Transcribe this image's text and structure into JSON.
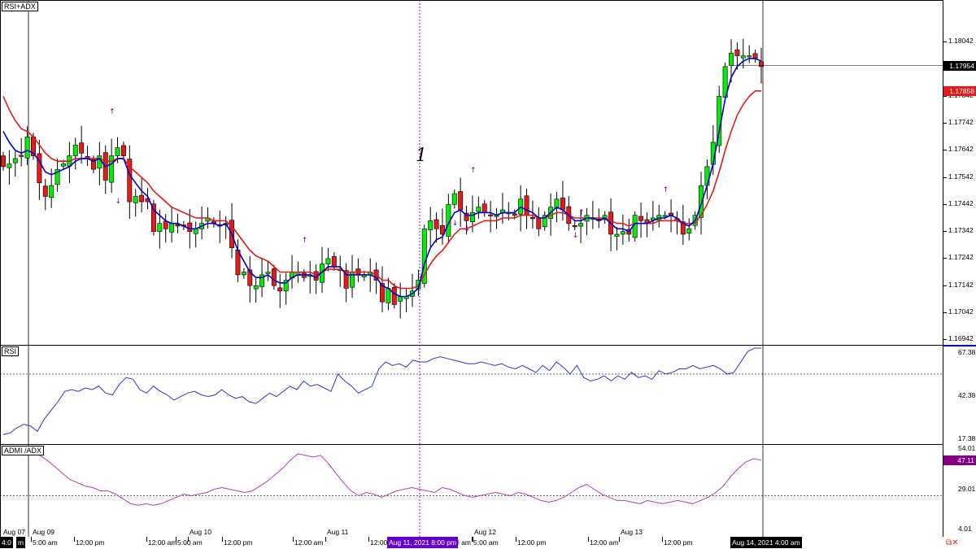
{
  "panes": {
    "main_title": "RSI+ADX",
    "rsi_title": "RSI",
    "adx_title": "ADMI /ADX"
  },
  "price_axis": {
    "ticks": [
      "1.18042",
      "1.17942",
      "1.17842",
      "1.17742",
      "1.17642",
      "1.17542",
      "1.17442",
      "1.17342",
      "1.17242",
      "1.17142",
      "1.17042",
      "1.16942"
    ],
    "current_bid": "1.17954",
    "ma_value": "1.17858",
    "bid_color": "#000000",
    "ma_color": "#e31b1b"
  },
  "rsi_axis": {
    "ticks": [
      "67.38",
      "42.38",
      "17.38"
    ],
    "level": 55
  },
  "adx_axis": {
    "ticks": [
      "54.01",
      "29.01",
      "4.01"
    ],
    "current": "47.11",
    "current_color": "#800080",
    "level": 25
  },
  "time_axis": {
    "labels": [
      "Aug 07",
      "Aug 09",
      "5:00 am",
      "12:00 pm",
      "12:00 am",
      "5:00 am",
      "Aug 10",
      "12:00 pm",
      "12:00 am",
      "Aug 11",
      "12:00",
      "Aug 11, 2021 8:00 pm",
      "0 am",
      "5:00 am",
      "Aug 12",
      "12:00 pm",
      "12:00 am",
      "Aug 13",
      "12:00 pm",
      "Aug 14, 2021 4:00 am"
    ],
    "left_stub": "4:0",
    "left_stub2": "m",
    "crosshair_left": "Aug 11, 2021 8:00 pm",
    "crosshair_right": "Aug 14, 2021 4:00 am",
    "crosshair_left_color": "#6600cc",
    "crosshair_right_color": "#000000"
  },
  "annotation": {
    "text": "1"
  },
  "colors": {
    "bull": "#00ee00",
    "bear": "#e31b1b",
    "fast_ma": "#0000cc",
    "slow_ma": "#e31b1b",
    "rsi_line": "#3333cc",
    "adx_line": "#b040b0",
    "fractal": "#800080",
    "crosshair": "#8000ff"
  },
  "icons": {
    "corner": "sync-icon"
  },
  "chart_data": [
    {
      "type": "candlestick",
      "title": "RSI+ADX",
      "ylim": [
        1.16942,
        1.18142
      ],
      "close_values": [
        1.1758,
        1.1759,
        1.1761,
        1.1762,
        1.1769,
        1.1762,
        1.1752,
        1.1747,
        1.1751,
        1.1757,
        1.1759,
        1.1762,
        1.1766,
        1.1763,
        1.1761,
        1.1757,
        1.1762,
        1.1753,
        1.1762,
        1.1765,
        1.1762,
        1.1745,
        1.1747,
        1.1745,
        1.1745,
        1.1734,
        1.1737,
        1.1735,
        1.1737,
        1.1736,
        1.1736,
        1.1734,
        1.1735,
        1.1737,
        1.1739,
        1.1737,
        1.1736,
        1.1737,
        1.1728,
        1.1718,
        1.1719,
        1.1714,
        1.1714,
        1.1718,
        1.1719,
        1.1714,
        1.1712,
        1.1716,
        1.1719,
        1.1719,
        1.1717,
        1.1718,
        1.1716,
        1.1722,
        1.1724,
        1.1721,
        1.172,
        1.1713,
        1.1719,
        1.1718,
        1.1718,
        1.1719,
        1.1716,
        1.1708,
        1.1713,
        1.1707,
        1.171,
        1.171,
        1.1712,
        1.1716,
        1.1735,
        1.1738,
        1.1735,
        1.1733,
        1.1744,
        1.1748,
        1.1742,
        1.1738,
        1.1741,
        1.1743,
        1.1741,
        1.174,
        1.174,
        1.1742,
        1.1741,
        1.174,
        1.1746,
        1.174,
        1.1739,
        1.1735,
        1.174,
        1.1743,
        1.1746,
        1.1742,
        1.1737,
        1.1736,
        1.1737,
        1.174,
        1.1739,
        1.1738,
        1.174,
        1.1733,
        1.1733,
        1.1734,
        1.1733,
        1.174,
        1.1738,
        1.1737,
        1.1739,
        1.174,
        1.174,
        1.174,
        1.1738,
        1.1733,
        1.1735,
        1.174,
        1.1751,
        1.1758,
        1.1767,
        1.1784,
        1.1795,
        1.18,
        1.1799,
        1.1799,
        1.1799,
        1.1798,
        1.1795
      ],
      "fast_ma_values": [
        1.1771,
        1.1767,
        1.1764,
        1.1763,
        1.1764,
        1.1763,
        1.176,
        1.1756,
        1.1755,
        1.1756,
        1.1757,
        1.1758,
        1.176,
        1.1761,
        1.1761,
        1.176,
        1.1761,
        1.1758,
        1.1759,
        1.1761,
        1.1761,
        1.1755,
        1.1752,
        1.1749,
        1.1747,
        1.1742,
        1.174,
        1.1738,
        1.1737,
        1.1737,
        1.1736,
        1.1735,
        1.1735,
        1.1736,
        1.1737,
        1.1737,
        1.1736,
        1.1737,
        1.1733,
        1.1727,
        1.1723,
        1.1719,
        1.1717,
        1.1717,
        1.1718,
        1.1716,
        1.1715,
        1.1715,
        1.1717,
        1.1718,
        1.1718,
        1.1718,
        1.1717,
        1.1719,
        1.1721,
        1.1721,
        1.1721,
        1.1718,
        1.1718,
        1.1718,
        1.1718,
        1.1718,
        1.1717,
        1.1714,
        1.1713,
        1.1711,
        1.171,
        1.171,
        1.1711,
        1.1713,
        1.1722,
        1.1728,
        1.1731,
        1.1732,
        1.1737,
        1.1741,
        1.1742,
        1.174,
        1.174,
        1.1741,
        1.1741,
        1.1741,
        1.174,
        1.1741,
        1.1741,
        1.1741,
        1.1743,
        1.1742,
        1.1741,
        1.1739,
        1.1739,
        1.1741,
        1.1743,
        1.1742,
        1.174,
        1.1738,
        1.1738,
        1.1739,
        1.1739,
        1.1738,
        1.1739,
        1.1737,
        1.1735,
        1.1735,
        1.1734,
        1.1737,
        1.1737,
        1.1737,
        1.1738,
        1.1739,
        1.1739,
        1.174,
        1.1739,
        1.1737,
        1.1736,
        1.1738,
        1.1744,
        1.1751,
        1.1759,
        1.1771,
        1.1783,
        1.1791,
        1.1795,
        1.1797,
        1.1798,
        1.1798,
        1.1797
      ],
      "slow_ma_values": [
        1.1784,
        1.1779,
        1.1775,
        1.1772,
        1.1771,
        1.1769,
        1.1766,
        1.1763,
        1.1761,
        1.176,
        1.176,
        1.176,
        1.1761,
        1.1761,
        1.1761,
        1.1761,
        1.1761,
        1.176,
        1.176,
        1.1761,
        1.1761,
        1.1758,
        1.1756,
        1.1754,
        1.1752,
        1.1749,
        1.1747,
        1.1745,
        1.1743,
        1.1742,
        1.1741,
        1.174,
        1.1739,
        1.1739,
        1.1739,
        1.1738,
        1.1738,
        1.1738,
        1.1736,
        1.1733,
        1.173,
        1.1727,
        1.1725,
        1.1724,
        1.1723,
        1.1721,
        1.1719,
        1.1719,
        1.1719,
        1.1719,
        1.1719,
        1.1719,
        1.1718,
        1.1719,
        1.172,
        1.172,
        1.172,
        1.1719,
        1.1719,
        1.1719,
        1.1719,
        1.1719,
        1.1718,
        1.1716,
        1.1716,
        1.1714,
        1.1713,
        1.1713,
        1.1713,
        1.1714,
        1.1718,
        1.1722,
        1.1725,
        1.1727,
        1.173,
        1.1733,
        1.1735,
        1.1735,
        1.1736,
        1.1737,
        1.1738,
        1.1738,
        1.1738,
        1.1739,
        1.1739,
        1.1739,
        1.174,
        1.174,
        1.174,
        1.1739,
        1.1739,
        1.174,
        1.1741,
        1.1741,
        1.174,
        1.1739,
        1.1739,
        1.1739,
        1.1739,
        1.1739,
        1.1739,
        1.1738,
        1.1737,
        1.1737,
        1.1736,
        1.1737,
        1.1737,
        1.1737,
        1.1737,
        1.1738,
        1.1738,
        1.1738,
        1.1738,
        1.1737,
        1.1737,
        1.1737,
        1.174,
        1.1744,
        1.1749,
        1.1756,
        1.1764,
        1.1771,
        1.1777,
        1.1781,
        1.1784,
        1.1786,
        1.1786
      ]
    },
    {
      "type": "line",
      "title": "RSI",
      "ylim": [
        17.38,
        70
      ],
      "values": [
        20,
        21,
        24,
        26,
        25,
        22,
        29,
        34,
        39,
        45,
        46,
        45,
        47,
        46,
        48,
        44,
        43,
        49,
        53,
        52,
        46,
        44,
        48,
        45,
        43,
        40,
        42,
        44,
        45,
        43,
        42,
        43,
        46,
        43,
        41,
        42,
        39,
        38,
        41,
        44,
        42,
        45,
        48,
        46,
        51,
        48,
        49,
        47,
        45,
        55,
        51,
        48,
        44,
        46,
        48,
        58,
        62,
        60,
        61,
        59,
        63,
        62,
        62,
        64,
        65,
        64,
        63,
        62,
        61,
        61,
        62,
        61,
        60,
        61,
        59,
        58,
        60,
        58,
        56,
        60,
        57,
        62,
        59,
        55,
        60,
        53,
        51,
        52,
        54,
        51,
        54,
        52,
        56,
        53,
        54,
        52,
        57,
        55,
        56,
        58,
        58,
        60,
        58,
        59,
        60,
        58,
        55,
        56,
        62,
        68,
        70,
        70
      ],
      "levels": [
        55
      ]
    },
    {
      "type": "line",
      "title": "ADMI /ADX",
      "ylim": [
        4.01,
        54.01
      ],
      "values": [
        50,
        51,
        50,
        47,
        43,
        39,
        35,
        33,
        31,
        30,
        28,
        28,
        26,
        23,
        20,
        19,
        20,
        19,
        20,
        22,
        24,
        26,
        25,
        26,
        27,
        29,
        30,
        29,
        28,
        27,
        28,
        31,
        34,
        38,
        42,
        47,
        51,
        50,
        49,
        50,
        45,
        39,
        33,
        28,
        25,
        27,
        26,
        24,
        26,
        28,
        29,
        30,
        29,
        28,
        27,
        30,
        29,
        27,
        25,
        24,
        25,
        26,
        27,
        26,
        25,
        27,
        26,
        24,
        22,
        21,
        22,
        24,
        27,
        30,
        32,
        29,
        26,
        24,
        22,
        22,
        21,
        20,
        22,
        21,
        20,
        21,
        22,
        21,
        20,
        22,
        24,
        27,
        31,
        37,
        42,
        46,
        48,
        47
      ],
      "levels": [
        25
      ],
      "current": 47.11
    }
  ]
}
